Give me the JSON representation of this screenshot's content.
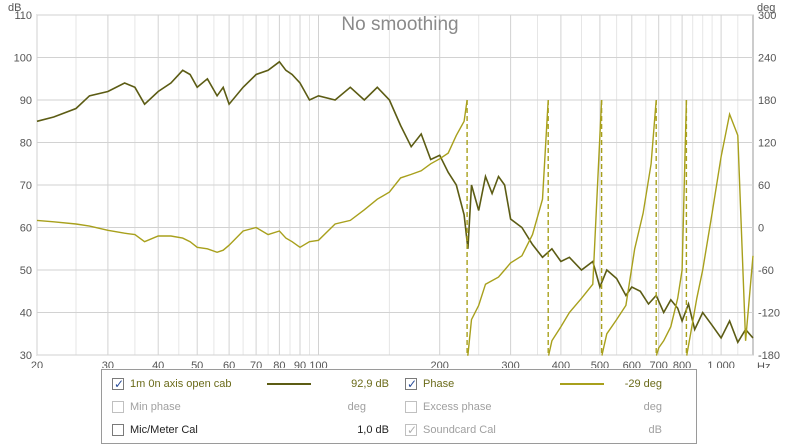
{
  "chart_data": {
    "type": "line",
    "title": "No smoothing",
    "x_unit": "Hz",
    "y_left_unit": "dB",
    "y_right_unit": "deg",
    "x_scale": "log",
    "xlim": [
      20,
      1200
    ],
    "ylim_left": [
      30,
      110
    ],
    "ylim_right": [
      -180,
      300
    ],
    "grid": true,
    "x_ticks": [
      20,
      30,
      40,
      50,
      60,
      70,
      80,
      90,
      100,
      200,
      300,
      400,
      500,
      600,
      700,
      800,
      1000
    ],
    "x_tick_labels": [
      "20",
      "30",
      "40",
      "50",
      "60",
      "70",
      "80",
      "90",
      "100",
      "200",
      "300",
      "400",
      "500",
      "600",
      "700",
      "800",
      "1 000"
    ],
    "y_left_ticks": [
      30,
      40,
      50,
      60,
      70,
      80,
      90,
      100,
      110
    ],
    "y_right_ticks": [
      -180,
      -120,
      -60,
      0,
      60,
      120,
      180,
      240,
      300
    ],
    "series": [
      {
        "name": "1m 0n axis open cab",
        "axis": "left",
        "color": "#5c5c14",
        "x": [
          20,
          22,
          25,
          27,
          30,
          33,
          35,
          37,
          40,
          43,
          46,
          48,
          50,
          53,
          56,
          58,
          60,
          65,
          70,
          75,
          80,
          83,
          86,
          90,
          95,
          100,
          110,
          120,
          130,
          140,
          150,
          160,
          170,
          180,
          190,
          200,
          210,
          220,
          230,
          235,
          240,
          250,
          260,
          270,
          280,
          290,
          300,
          320,
          340,
          360,
          380,
          400,
          420,
          450,
          480,
          500,
          520,
          550,
          580,
          600,
          630,
          660,
          690,
          720,
          750,
          780,
          800,
          830,
          860,
          900,
          950,
          1000,
          1050,
          1100,
          1150,
          1200
        ],
        "values": [
          85,
          86,
          88,
          91,
          92,
          94,
          93,
          89,
          92,
          94,
          97,
          96,
          93,
          95,
          91,
          93,
          89,
          93,
          96,
          97,
          99,
          97,
          96,
          94,
          90,
          91,
          90,
          93,
          90,
          93,
          90,
          84,
          79,
          82,
          76,
          77,
          73,
          70,
          63,
          55,
          70,
          64,
          72,
          68,
          72,
          70,
          62,
          60,
          56,
          53,
          55,
          52,
          53,
          50,
          52,
          46,
          50,
          48,
          44,
          46,
          45,
          42,
          44,
          40,
          43,
          41,
          38,
          42,
          36,
          40,
          37,
          34,
          38,
          33,
          36,
          34
        ]
      },
      {
        "name": "Phase",
        "axis": "right",
        "color": "#a8a01c",
        "x": [
          20,
          22,
          25,
          27,
          30,
          33,
          35,
          37,
          40,
          43,
          46,
          48,
          50,
          53,
          56,
          58,
          60,
          65,
          70,
          75,
          80,
          83,
          86,
          90,
          95,
          100,
          110,
          120,
          130,
          140,
          150,
          160,
          170,
          180,
          190,
          200,
          210,
          220,
          230,
          234,
          235,
          240,
          250,
          260,
          270,
          280,
          290,
          300,
          320,
          340,
          360,
          372,
          373,
          380,
          400,
          420,
          450,
          480,
          505,
          506,
          520,
          550,
          580,
          610,
          640,
          670,
          690,
          691,
          700,
          720,
          750,
          780,
          800,
          820,
          822,
          840,
          870,
          900,
          950,
          1000,
          1050,
          1100,
          1150,
          1200
        ],
        "values": [
          10,
          8,
          5,
          2,
          -4,
          -8,
          -10,
          -20,
          -12,
          -12,
          -15,
          -20,
          -28,
          -30,
          -35,
          -32,
          -25,
          -5,
          0,
          -10,
          -5,
          -15,
          -20,
          -28,
          -20,
          -18,
          5,
          10,
          25,
          40,
          50,
          70,
          75,
          80,
          90,
          97,
          105,
          130,
          150,
          180,
          -180,
          -130,
          -110,
          -80,
          -75,
          -70,
          -60,
          -50,
          -40,
          -10,
          40,
          180,
          -180,
          -160,
          -140,
          -120,
          -100,
          -80,
          180,
          -180,
          -150,
          -130,
          -110,
          -30,
          20,
          90,
          180,
          -180,
          -170,
          -160,
          -140,
          -100,
          -60,
          180,
          -180,
          -150,
          -100,
          -60,
          20,
          100,
          160,
          130,
          -160,
          -40
        ]
      }
    ]
  },
  "legend": {
    "row1": {
      "left_label": "1m 0n axis open cab",
      "left_value": "92,9 dB",
      "right_label": "Phase",
      "right_value": "-29 deg"
    },
    "row2": {
      "left_label": "Min phase",
      "left_value": "deg",
      "right_label": "Excess phase",
      "right_value": "deg"
    },
    "row3": {
      "left_label": "Mic/Meter Cal",
      "left_value": "1,0 dB",
      "right_label": "Soundcard Cal",
      "right_value": "dB"
    },
    "check_glyph": "✓"
  }
}
